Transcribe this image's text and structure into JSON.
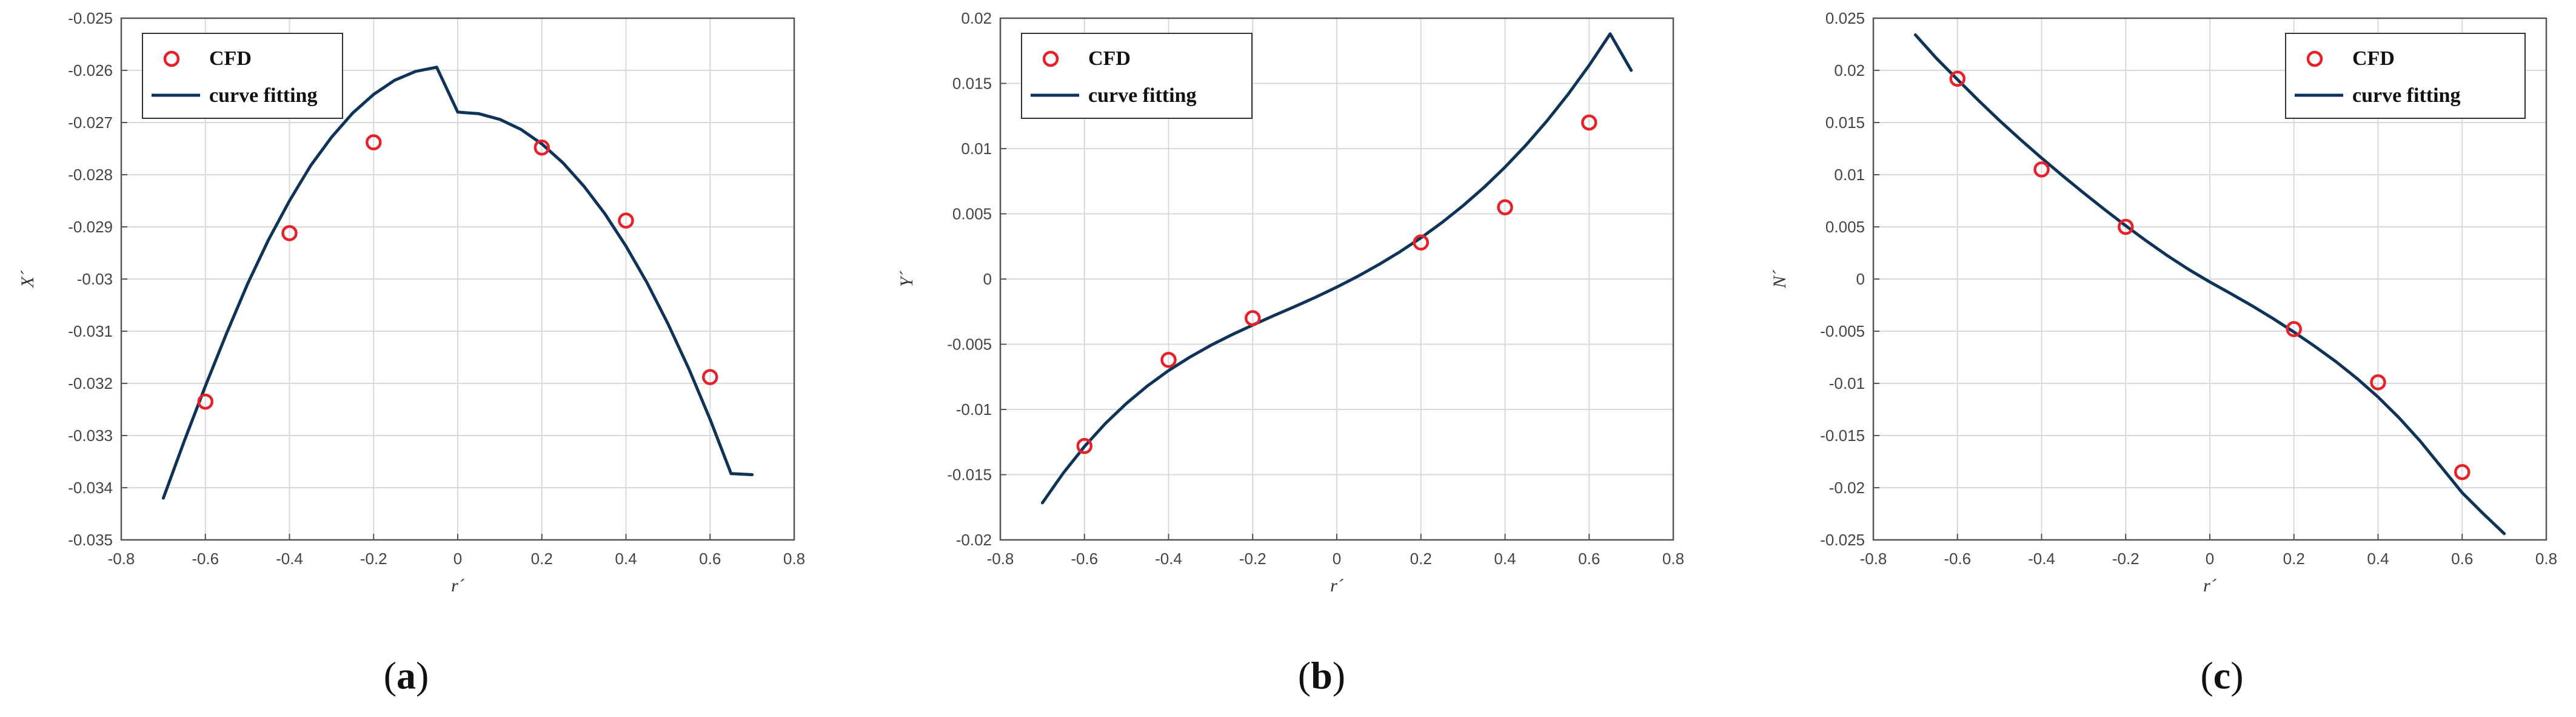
{
  "legend": {
    "points_label": "CFD",
    "curve_label": "curve fitting"
  },
  "colors": {
    "points": "#e8202a",
    "curve": "#0e3358",
    "grid": "#d9d9d9"
  },
  "chart_data": [
    {
      "type": "scatter",
      "panel": "a",
      "caption": {
        "open": "(",
        "letter": "a",
        "close": ")"
      },
      "xlabel": "r´",
      "ylabel": "X´",
      "xlim": [
        -0.8,
        0.8
      ],
      "ylim": [
        -0.035,
        -0.025
      ],
      "xticks": [
        -0.8,
        -0.6,
        -0.4,
        -0.2,
        0,
        0.2,
        0.4,
        0.6,
        0.8
      ],
      "xtick_labels": [
        "-0.8",
        "-0.6",
        "-0.4",
        "-0.2",
        "0",
        "0.2",
        "0.4",
        "0.6",
        "0.8"
      ],
      "yticks": [
        -0.035,
        -0.034,
        -0.033,
        -0.032,
        -0.031,
        -0.03,
        -0.029,
        -0.028,
        -0.027,
        -0.026,
        -0.025
      ],
      "ytick_labels": [
        "-0.035",
        "-0.034",
        "-0.033",
        "-0.032",
        "-0.031",
        "-0.03",
        "-0.029",
        "-0.028",
        "-0.027",
        "-0.026",
        "-0.025"
      ],
      "grid": true,
      "legend_position": "top-left",
      "series": [
        {
          "name": "CFD",
          "kind": "markers",
          "x": [
            -0.6,
            -0.4,
            -0.2,
            0.2,
            0.4,
            0.6
          ],
          "y": [
            -0.03235,
            -0.02912,
            -0.02738,
            -0.02748,
            -0.02888,
            -0.03188
          ]
        },
        {
          "name": "curve fitting",
          "kind": "line",
          "x": [
            -0.7,
            -0.65,
            -0.6,
            -0.55,
            -0.5,
            -0.45,
            -0.4,
            -0.35,
            -0.3,
            -0.25,
            -0.2,
            -0.15,
            -0.1,
            -0.05,
            0,
            0.05,
            0.1,
            0.15,
            0.2,
            0.25,
            0.3,
            0.35,
            0.4,
            0.45,
            0.5,
            0.55,
            0.6,
            0.65,
            0.7
          ],
          "y": [
            -0.0342,
            -0.0331,
            -0.03205,
            -0.03105,
            -0.0301,
            -0.02925,
            -0.0285,
            -0.02783,
            -0.02728,
            -0.02682,
            -0.02646,
            -0.02619,
            -0.02602,
            -0.02594,
            -0.0268,
            -0.02683,
            -0.02694,
            -0.02713,
            -0.02741,
            -0.02777,
            -0.02822,
            -0.02875,
            -0.02937,
            -0.03007,
            -0.03086,
            -0.03173,
            -0.03269,
            -0.03373,
            -0.03375
          ]
        }
      ]
    },
    {
      "type": "scatter",
      "panel": "b",
      "caption": {
        "open": "(",
        "letter": "b",
        "close": ")"
      },
      "xlabel": "r´",
      "ylabel": "Y´",
      "xlim": [
        -0.8,
        0.8
      ],
      "ylim": [
        -0.02,
        0.02
      ],
      "xticks": [
        -0.8,
        -0.6,
        -0.4,
        -0.2,
        0,
        0.2,
        0.4,
        0.6,
        0.8
      ],
      "xtick_labels": [
        "-0.8",
        "-0.6",
        "-0.4",
        "-0.2",
        "0",
        "0.2",
        "0.4",
        "0.6",
        "0.8"
      ],
      "yticks": [
        -0.02,
        -0.015,
        -0.01,
        -0.005,
        0,
        0.005,
        0.01,
        0.015,
        0.02
      ],
      "ytick_labels": [
        "-0.02",
        "-0.015",
        "-0.01",
        "-0.005",
        "0",
        "0.005",
        "0.01",
        "0.015",
        "0.02"
      ],
      "grid": true,
      "legend_position": "top-left",
      "series": [
        {
          "name": "CFD",
          "kind": "markers",
          "x": [
            -0.6,
            -0.4,
            -0.2,
            0.2,
            0.4,
            0.6
          ],
          "y": [
            -0.0128,
            -0.0062,
            -0.003,
            0.0028,
            0.0055,
            0.012
          ]
        },
        {
          "name": "curve fitting",
          "kind": "line",
          "x": [
            -0.7,
            -0.65,
            -0.6,
            -0.55,
            -0.5,
            -0.45,
            -0.4,
            -0.35,
            -0.3,
            -0.25,
            -0.2,
            -0.15,
            -0.1,
            -0.05,
            0,
            0.05,
            0.1,
            0.15,
            0.2,
            0.25,
            0.3,
            0.35,
            0.4,
            0.45,
            0.5,
            0.55,
            0.6,
            0.65,
            0.7
          ],
          "y": [
            -0.01716,
            -0.01486,
            -0.01284,
            -0.01107,
            -0.00953,
            -0.00819,
            -0.00702,
            -0.006,
            -0.00509,
            -0.00428,
            -0.00353,
            -0.00281,
            -0.00211,
            -0.00139,
            -0.00062,
            0.00021,
            0.00111,
            0.00209,
            0.00316,
            0.00433,
            0.00562,
            0.00703,
            0.00858,
            0.01028,
            0.01214,
            0.01417,
            0.01639,
            0.0188,
            0.016
          ]
        }
      ]
    },
    {
      "type": "scatter",
      "panel": "c",
      "caption": {
        "open": "(",
        "letter": "c",
        "close": ")"
      },
      "xlabel": "r´",
      "ylabel": "N´",
      "xlim": [
        -0.8,
        0.8
      ],
      "ylim": [
        -0.025,
        0.025
      ],
      "xticks": [
        -0.8,
        -0.6,
        -0.4,
        -0.2,
        0,
        0.2,
        0.4,
        0.6,
        0.8
      ],
      "xtick_labels": [
        "-0.8",
        "-0.6",
        "-0.4",
        "-0.2",
        "0",
        "0.2",
        "0.4",
        "0.6",
        "0.8"
      ],
      "yticks": [
        -0.025,
        -0.02,
        -0.015,
        -0.01,
        -0.005,
        0,
        0.005,
        0.01,
        0.015,
        0.02,
        0.025
      ],
      "ytick_labels": [
        "-0.025",
        "-0.02",
        "-0.015",
        "-0.01",
        "-0.005",
        "0",
        "0.005",
        "0.01",
        "0.015",
        "0.02",
        "0.025"
      ],
      "grid": true,
      "legend_position": "top-right",
      "series": [
        {
          "name": "CFD",
          "kind": "markers",
          "x": [
            -0.6,
            -0.4,
            -0.2,
            0.2,
            0.4,
            0.6
          ],
          "y": [
            0.0192,
            0.0105,
            0.005,
            -0.0048,
            -0.0099,
            -0.0185
          ]
        },
        {
          "name": "curve fitting",
          "kind": "line",
          "x": [
            -0.7,
            -0.65,
            -0.6,
            -0.55,
            -0.5,
            -0.45,
            -0.4,
            -0.35,
            -0.3,
            -0.25,
            -0.2,
            -0.15,
            -0.1,
            -0.05,
            0,
            0.05,
            0.1,
            0.15,
            0.2,
            0.25,
            0.3,
            0.35,
            0.4,
            0.45,
            0.5,
            0.55,
            0.6,
            0.65,
            0.7
          ],
          "y": [
            0.0234,
            0.02115,
            0.01912,
            0.01712,
            0.01519,
            0.01336,
            0.0116,
            0.0099,
            0.00825,
            0.00665,
            0.00511,
            0.00363,
            0.00222,
            0.00091,
            -0.00028,
            -0.0014,
            -0.00255,
            -0.00378,
            -0.00508,
            -0.00646,
            -0.00792,
            -0.00953,
            -0.01131,
            -0.0133,
            -0.01553,
            -0.018,
            -0.02048,
            -0.02248,
            -0.0244
          ]
        }
      ]
    }
  ]
}
